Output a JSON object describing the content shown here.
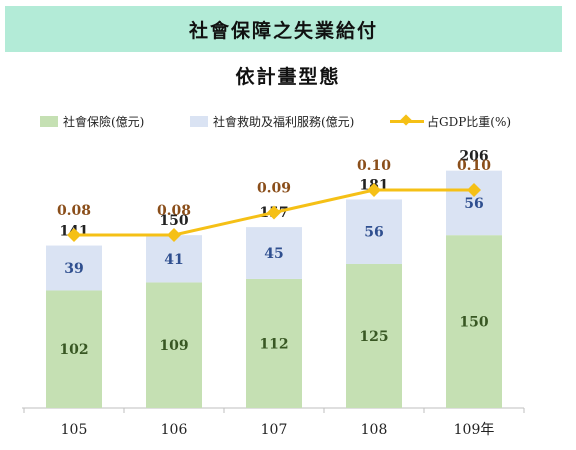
{
  "banner": {
    "title": "社會保障之失業給付"
  },
  "chart_data": {
    "type": "bar",
    "title": "依計畫型態",
    "categories": [
      "105",
      "106",
      "107",
      "108",
      "109年"
    ],
    "series": [
      {
        "name": "社會保險(億元)",
        "values": [
          102,
          109,
          112,
          125,
          150
        ],
        "color": "#c5e0b3"
      },
      {
        "name": "社會救助及福利服務(億元)",
        "values": [
          39,
          41,
          45,
          56,
          56
        ],
        "color": "#dae3f3"
      }
    ],
    "totals": [
      141,
      150,
      157,
      181,
      206
    ],
    "line": {
      "name": "占GDP比重(%)",
      "values": [
        0.08,
        0.08,
        0.09,
        0.1,
        0.1
      ],
      "labels": [
        "0.08",
        "0.08",
        "0.09",
        "0.10",
        "0.10"
      ],
      "color": "#f5c016"
    },
    "ylim": [
      0,
      230
    ],
    "grid": false,
    "legend": "top",
    "colors": {
      "bar_label": "#385723",
      "rescue_label": "#2f4f8f",
      "total_label": "#222222",
      "line_label": "#8a4e1a"
    }
  }
}
